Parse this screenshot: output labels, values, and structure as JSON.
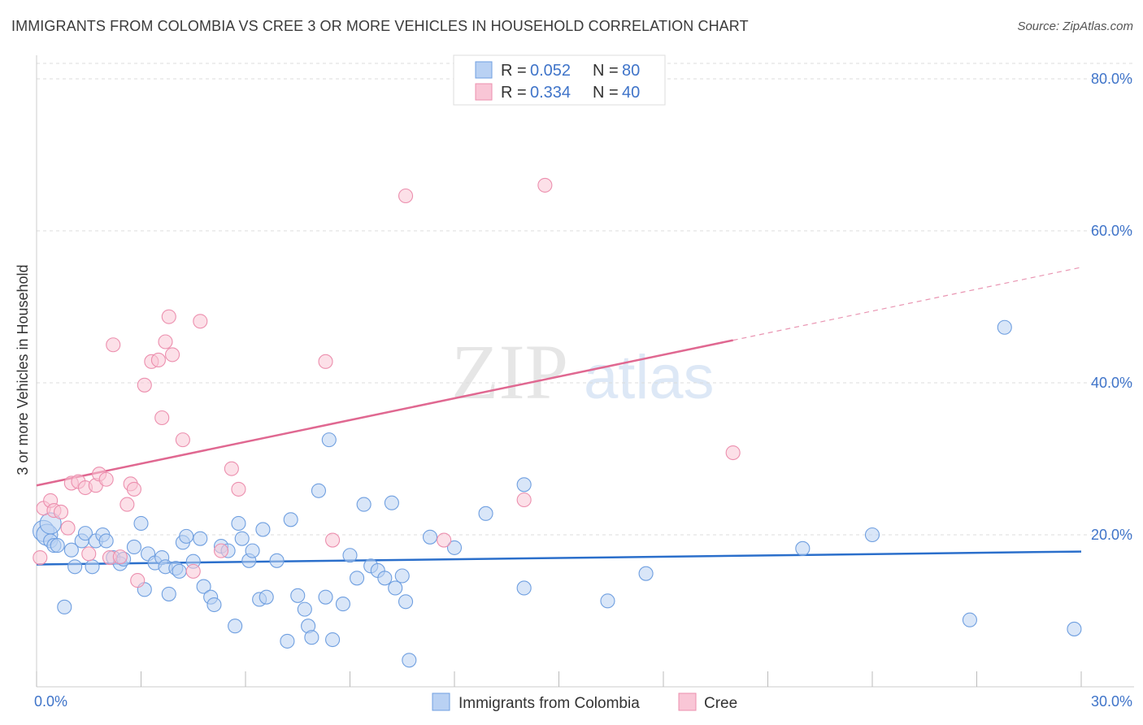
{
  "title": "IMMIGRANTS FROM COLOMBIA VS CREE 3 OR MORE VEHICLES IN HOUSEHOLD CORRELATION CHART",
  "source": "Source: ZipAtlas.com",
  "watermark": {
    "zip": "ZIP",
    "atlas": "atlas"
  },
  "chart_data": {
    "type": "scatter",
    "title": "IMMIGRANTS FROM COLOMBIA VS CREE 3 OR MORE VEHICLES IN HOUSEHOLD CORRELATION CHART",
    "xlabel": "",
    "ylabel": "3 or more Vehicles in Household",
    "xlim": [
      0,
      30
    ],
    "ylim": [
      0,
      80
    ],
    "x_tick_labels": [
      "0.0%",
      "30.0%"
    ],
    "y_tick_labels": [
      "20.0%",
      "40.0%",
      "60.0%",
      "80.0%"
    ],
    "y_ticks": [
      20,
      40,
      60,
      80
    ],
    "grid": true,
    "legend_position": "top-center",
    "legend": [
      {
        "r_label": "R =",
        "r_value": "0.052",
        "n_label": "N =",
        "n_value": "80"
      },
      {
        "r_label": "R =",
        "r_value": "0.334",
        "n_label": "N =",
        "n_value": "40"
      }
    ],
    "series": [
      {
        "name": "Immigrants from Colombia",
        "color": "#6f9fe0",
        "fill": "#b9d1f3",
        "line_color": "#2b6fcb",
        "trend": {
          "x0": 0,
          "y0": 16.1,
          "x1": 30,
          "y1": 17.8
        },
        "points": [
          [
            0.2,
            20.5
          ],
          [
            0.3,
            20.0
          ],
          [
            0.4,
            19.2
          ],
          [
            0.5,
            18.6
          ],
          [
            0.6,
            18.6
          ],
          [
            0.8,
            10.5
          ],
          [
            1.0,
            18.0
          ],
          [
            1.1,
            15.8
          ],
          [
            1.3,
            19.2
          ],
          [
            1.4,
            20.2
          ],
          [
            1.6,
            15.8
          ],
          [
            1.7,
            19.2
          ],
          [
            1.9,
            20.0
          ],
          [
            2.0,
            19.2
          ],
          [
            2.2,
            17.0
          ],
          [
            2.4,
            16.2
          ],
          [
            2.5,
            16.8
          ],
          [
            2.8,
            18.4
          ],
          [
            3.0,
            21.5
          ],
          [
            3.1,
            12.8
          ],
          [
            3.2,
            17.5
          ],
          [
            3.4,
            16.3
          ],
          [
            3.6,
            17.0
          ],
          [
            3.7,
            15.8
          ],
          [
            3.8,
            12.2
          ],
          [
            4.0,
            15.6
          ],
          [
            4.1,
            15.2
          ],
          [
            4.2,
            19.0
          ],
          [
            4.3,
            19.8
          ],
          [
            4.5,
            16.5
          ],
          [
            4.7,
            19.5
          ],
          [
            4.8,
            13.2
          ],
          [
            5.0,
            11.8
          ],
          [
            5.1,
            10.8
          ],
          [
            5.3,
            18.5
          ],
          [
            5.5,
            17.9
          ],
          [
            5.7,
            8.0
          ],
          [
            5.8,
            21.5
          ],
          [
            5.9,
            19.5
          ],
          [
            6.1,
            16.6
          ],
          [
            6.2,
            17.9
          ],
          [
            6.4,
            11.5
          ],
          [
            6.5,
            20.7
          ],
          [
            6.6,
            11.8
          ],
          [
            6.9,
            16.6
          ],
          [
            7.2,
            6.0
          ],
          [
            7.3,
            22.0
          ],
          [
            7.5,
            12.0
          ],
          [
            7.7,
            10.2
          ],
          [
            7.8,
            8.0
          ],
          [
            7.9,
            6.5
          ],
          [
            8.1,
            25.8
          ],
          [
            8.3,
            11.8
          ],
          [
            8.4,
            32.5
          ],
          [
            8.5,
            6.2
          ],
          [
            8.8,
            10.9
          ],
          [
            9.0,
            17.3
          ],
          [
            9.2,
            14.3
          ],
          [
            9.4,
            24.0
          ],
          [
            9.6,
            15.9
          ],
          [
            9.8,
            15.3
          ],
          [
            10.0,
            14.3
          ],
          [
            10.2,
            24.2
          ],
          [
            10.3,
            13.0
          ],
          [
            10.5,
            14.6
          ],
          [
            10.6,
            11.2
          ],
          [
            10.7,
            3.5
          ],
          [
            11.3,
            19.7
          ],
          [
            12.0,
            18.3
          ],
          [
            12.9,
            22.8
          ],
          [
            14.0,
            26.6
          ],
          [
            14.0,
            13.0
          ],
          [
            16.4,
            11.3
          ],
          [
            17.5,
            14.9
          ],
          [
            22.0,
            18.2
          ],
          [
            24.0,
            20.0
          ],
          [
            26.8,
            8.8
          ],
          [
            27.8,
            47.3
          ],
          [
            29.8,
            7.6
          ],
          [
            0.4,
            21.5
          ]
        ]
      },
      {
        "name": "Cree",
        "color": "#ec8fae",
        "fill": "#f9c6d6",
        "line_color": "#e06891",
        "trend": {
          "x0": 0,
          "y0": 26.5,
          "x1": 20.0,
          "y1": 45.6,
          "dashed_to_x": 30,
          "dashed_to_y": 55.2
        },
        "points": [
          [
            0.1,
            17.0
          ],
          [
            0.2,
            23.5
          ],
          [
            0.4,
            24.5
          ],
          [
            0.5,
            23.2
          ],
          [
            0.7,
            23.0
          ],
          [
            0.9,
            20.9
          ],
          [
            1.0,
            26.8
          ],
          [
            1.2,
            27.0
          ],
          [
            1.4,
            26.2
          ],
          [
            1.5,
            17.5
          ],
          [
            1.7,
            26.5
          ],
          [
            1.8,
            28.0
          ],
          [
            2.0,
            27.3
          ],
          [
            2.1,
            17.0
          ],
          [
            2.2,
            45.0
          ],
          [
            2.4,
            17.1
          ],
          [
            2.6,
            24.0
          ],
          [
            2.7,
            26.7
          ],
          [
            2.8,
            26.0
          ],
          [
            2.9,
            14.0
          ],
          [
            3.1,
            39.7
          ],
          [
            3.3,
            42.8
          ],
          [
            3.5,
            43.0
          ],
          [
            3.6,
            35.4
          ],
          [
            3.7,
            45.4
          ],
          [
            3.8,
            48.7
          ],
          [
            3.9,
            43.7
          ],
          [
            4.2,
            32.5
          ],
          [
            4.5,
            15.2
          ],
          [
            4.7,
            48.1
          ],
          [
            5.3,
            17.9
          ],
          [
            5.6,
            28.7
          ],
          [
            5.8,
            26.0
          ],
          [
            8.3,
            42.8
          ],
          [
            8.5,
            19.3
          ],
          [
            10.6,
            64.6
          ],
          [
            11.7,
            19.3
          ],
          [
            14.0,
            24.6
          ],
          [
            14.6,
            66.0
          ],
          [
            20.0,
            30.8
          ]
        ]
      }
    ]
  },
  "bottom_legend": [
    {
      "label": "Immigrants from Colombia"
    },
    {
      "label": "Cree"
    }
  ]
}
